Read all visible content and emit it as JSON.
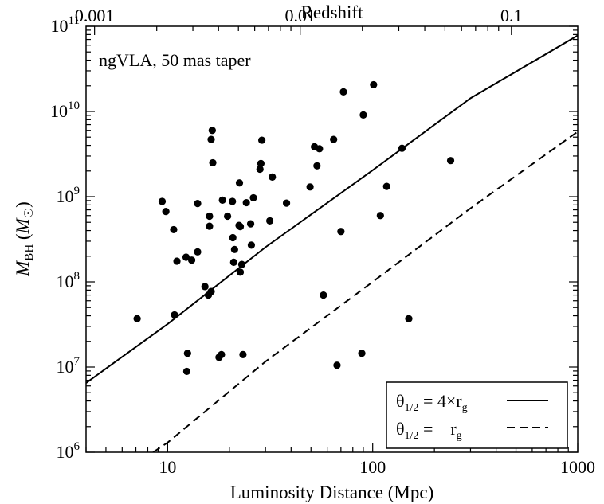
{
  "chart_data": {
    "type": "scatter",
    "annotation": "ngVLA, 50 mas taper",
    "xlabel": "Luminosity Distance (Mpc)",
    "x2label": "Redshift",
    "ylabel_main": "M",
    "ylabel_sub": "BH",
    "ylabel_open": " (",
    "ylabel_unit": "M",
    "ylabel_close": ")",
    "x_scale": "log",
    "y_scale": "log",
    "xlim": [
      4.0,
      1000
    ],
    "ylim": [
      1000000,
      100000000000
    ],
    "x_ticks": [
      {
        "value": 10,
        "label": "10"
      },
      {
        "value": 100,
        "label": "100"
      },
      {
        "value": 1000,
        "label": "1000"
      }
    ],
    "x2_ticks": [
      {
        "value": 4.4,
        "label": "0.001"
      },
      {
        "value": 44.3,
        "label": "0.01"
      },
      {
        "value": 475,
        "label": "0.1"
      }
    ],
    "y_ticks": [
      {
        "exp": 6,
        "base": "10",
        "sup": "6"
      },
      {
        "exp": 7,
        "base": "10",
        "sup": "7"
      },
      {
        "exp": 8,
        "base": "10",
        "sup": "8"
      },
      {
        "exp": 9,
        "base": "10",
        "sup": "9"
      },
      {
        "exp": 10,
        "base": "10",
        "sup": "10"
      },
      {
        "exp": 11,
        "base": "10",
        "sup": "11"
      }
    ],
    "legend": {
      "placement": "bottom-right",
      "entries": [
        {
          "theta": "θ",
          "sub": "1/2",
          "rhs": " = 4×r",
          "rsub": "g",
          "style": "solid"
        },
        {
          "theta": "θ",
          "sub": "1/2",
          "rhs": " =    r",
          "rsub": "g",
          "style": "dashed"
        }
      ]
    },
    "series": [
      {
        "style": "solid",
        "points": [
          [
            4.0,
            6500000
          ],
          [
            10,
            32000000
          ],
          [
            30,
            255000000
          ],
          [
            100,
            2040000000
          ],
          [
            300,
            14300000000
          ],
          [
            1000,
            78000000000
          ]
        ]
      },
      {
        "style": "dashed",
        "points": [
          [
            8.5,
            1000000
          ],
          [
            10,
            1300000
          ],
          [
            30,
            11600000
          ],
          [
            100,
            100000000
          ],
          [
            300,
            730000000
          ],
          [
            1000,
            5800000000
          ]
        ]
      }
    ],
    "points": [
      [
        7.1,
        37000000
      ],
      [
        9.4,
        880000000
      ],
      [
        9.8,
        670000000
      ],
      [
        10.7,
        410000000
      ],
      [
        10.8,
        41000000
      ],
      [
        11.1,
        175000000
      ],
      [
        12.3,
        195000000
      ],
      [
        12.5,
        14500000
      ],
      [
        12.4,
        8900000
      ],
      [
        13.1,
        180000000
      ],
      [
        14.0,
        830000000
      ],
      [
        14.0,
        225000000
      ],
      [
        15.2,
        88000000
      ],
      [
        15.8,
        70000000
      ],
      [
        16.0,
        590000000
      ],
      [
        16.0,
        450000000
      ],
      [
        16.3,
        77000000
      ],
      [
        16.3,
        4700000000
      ],
      [
        16.5,
        6000000000
      ],
      [
        16.6,
        2500000000
      ],
      [
        17.8,
        13000000
      ],
      [
        18.3,
        14000000
      ],
      [
        18.5,
        910000000
      ],
      [
        19.6,
        590000000
      ],
      [
        20.7,
        880000000
      ],
      [
        20.8,
        330000000
      ],
      [
        21.2,
        240000000
      ],
      [
        21.0,
        170000000
      ],
      [
        22.4,
        1450000000
      ],
      [
        22.3,
        460000000
      ],
      [
        22.6,
        445000000
      ],
      [
        22.6,
        130000000
      ],
      [
        23.0,
        160000000
      ],
      [
        23.3,
        14000000
      ],
      [
        24.2,
        850000000
      ],
      [
        25.4,
        480000000
      ],
      [
        25.6,
        270000000
      ],
      [
        26.2,
        970000000
      ],
      [
        28.2,
        2100000000
      ],
      [
        28.5,
        2450000000
      ],
      [
        28.8,
        4600000000
      ],
      [
        31.5,
        520000000
      ],
      [
        32.4,
        1700000000
      ],
      [
        38.0,
        840000000
      ],
      [
        49.5,
        1300000000
      ],
      [
        52.0,
        3850000000
      ],
      [
        53.5,
        2300000000
      ],
      [
        55.0,
        3650000000
      ],
      [
        57.5,
        70000000
      ],
      [
        64.5,
        4700000000
      ],
      [
        67.0,
        10500000
      ],
      [
        70.0,
        390000000
      ],
      [
        72.0,
        17000000000
      ],
      [
        88.5,
        14500000
      ],
      [
        90.0,
        9100000000
      ],
      [
        101.0,
        20600000000
      ],
      [
        109.0,
        600000000
      ],
      [
        117.0,
        1320000000
      ],
      [
        139.0,
        3700000000
      ],
      [
        150.0,
        37000000
      ],
      [
        240.0,
        2650000000
      ]
    ]
  }
}
